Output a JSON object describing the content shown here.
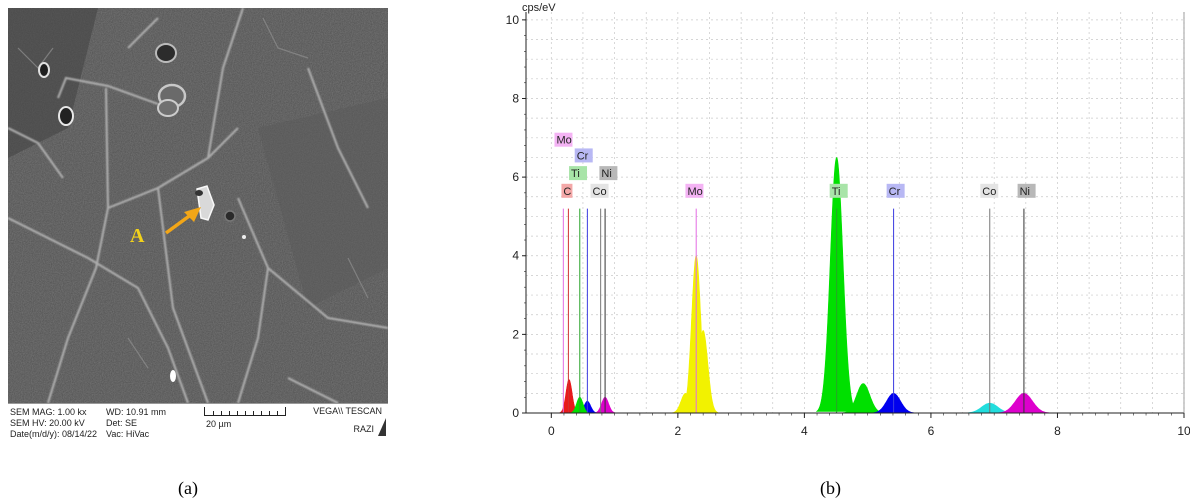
{
  "panel_a": {
    "caption": "(a)",
    "point_label": "A",
    "info": {
      "sem_mag": "SEM MAG: 1.00 kx",
      "sem_hv": "SEM HV: 20.00 kV",
      "date": "Date(m/d/y): 08/14/22",
      "wd": "WD: 10.91 mm",
      "det": "Det: SE",
      "vac": "Vac: HiVac",
      "scale": "20 µm",
      "instrument": "VEGA\\\\ TESCAN",
      "lab": "RAZI"
    }
  },
  "panel_b": {
    "caption": "(b)"
  },
  "chart_data": {
    "type": "area",
    "title": "",
    "xlabel": "",
    "ylabel": "cps/eV",
    "xlim": [
      -0.4,
      10
    ],
    "ylim": [
      0,
      10.2
    ],
    "x_ticks": [
      "0",
      "2",
      "4",
      "6",
      "8",
      "10"
    ],
    "y_ticks": [
      "0",
      "2",
      "4",
      "6",
      "8",
      "10"
    ],
    "grid": true,
    "peaks": [
      {
        "element": "C",
        "energy": 0.28,
        "height": 0.85,
        "color": "#e8191b"
      },
      {
        "element": "Mo",
        "energy": 2.29,
        "height": 4.0,
        "color": "#f2f200"
      },
      {
        "element": "Mo",
        "energy": 2.4,
        "height": 2.1,
        "color": "#f2f200"
      },
      {
        "element": "Mo",
        "energy": 2.12,
        "height": 0.5,
        "color": "#f2f200"
      },
      {
        "element": "Ti",
        "energy": 4.51,
        "height": 6.5,
        "color": "#00e000"
      },
      {
        "element": "Ti",
        "energy": 4.93,
        "height": 0.75,
        "color": "#00e000"
      },
      {
        "element": "Cr",
        "energy": 5.41,
        "height": 0.5,
        "color": "#0000ee"
      },
      {
        "element": "Co",
        "energy": 6.93,
        "height": 0.25,
        "color": "#22dddd"
      },
      {
        "element": "Ni",
        "energy": 7.47,
        "height": 0.5,
        "color": "#dd00cc"
      },
      {
        "element": "Ni",
        "energy": 0.85,
        "height": 0.4,
        "color": "#dd00cc"
      },
      {
        "element": "Cr",
        "energy": 0.57,
        "height": 0.3,
        "color": "#0000ee"
      },
      {
        "element": "Ti",
        "energy": 0.45,
        "height": 0.4,
        "color": "#00e000"
      }
    ],
    "markers": [
      {
        "element": "Mo",
        "energy": 0.19,
        "color": "#e36be3"
      },
      {
        "element": "C",
        "energy": 0.27,
        "color": "#d03030"
      },
      {
        "element": "Ti",
        "energy": 0.45,
        "color": "#29a329"
      },
      {
        "element": "Cr",
        "energy": 0.57,
        "color": "#3a3ae0"
      },
      {
        "element": "Co",
        "energy": 0.78,
        "color": "#777777"
      },
      {
        "element": "Ni",
        "energy": 0.85,
        "color": "#333333"
      },
      {
        "element": "Mo",
        "energy": 2.29,
        "color": "#e36be3"
      },
      {
        "element": "Ti",
        "energy": 4.51,
        "color": "#29a329"
      },
      {
        "element": "Cr",
        "energy": 5.41,
        "color": "#3a3ae0"
      },
      {
        "element": "Co",
        "energy": 6.93,
        "color": "#777777"
      },
      {
        "element": "Ni",
        "energy": 7.47,
        "color": "#333333"
      }
    ],
    "labels": [
      {
        "text": "Mo",
        "energy": 0.05,
        "level": 6.85,
        "bg": "#f4b3f4"
      },
      {
        "text": "Cr",
        "energy": 0.37,
        "level": 6.45,
        "bg": "#b8b8f4"
      },
      {
        "text": "Ti",
        "energy": 0.28,
        "level": 6.0,
        "bg": "#a8e4a8"
      },
      {
        "text": "Ni",
        "energy": 0.76,
        "level": 6.0,
        "bg": "#b8b8b8"
      },
      {
        "text": "C",
        "energy": 0.16,
        "level": 5.55,
        "bg": "#f4a8a8"
      },
      {
        "text": "Co",
        "energy": 0.62,
        "level": 5.55,
        "bg": "#e4e4e4"
      },
      {
        "text": "Mo",
        "energy": 2.12,
        "level": 5.55,
        "bg": "#f4b3f4"
      },
      {
        "text": "Ti",
        "energy": 4.4,
        "level": 5.55,
        "bg": "#a8e4a8"
      },
      {
        "text": "Cr",
        "energy": 5.3,
        "level": 5.55,
        "bg": "#b8b8f4"
      },
      {
        "text": "Co",
        "energy": 6.78,
        "level": 5.55,
        "bg": "#e4e4e4"
      },
      {
        "text": "Ni",
        "energy": 7.37,
        "level": 5.55,
        "bg": "#b8b8b8"
      }
    ]
  }
}
